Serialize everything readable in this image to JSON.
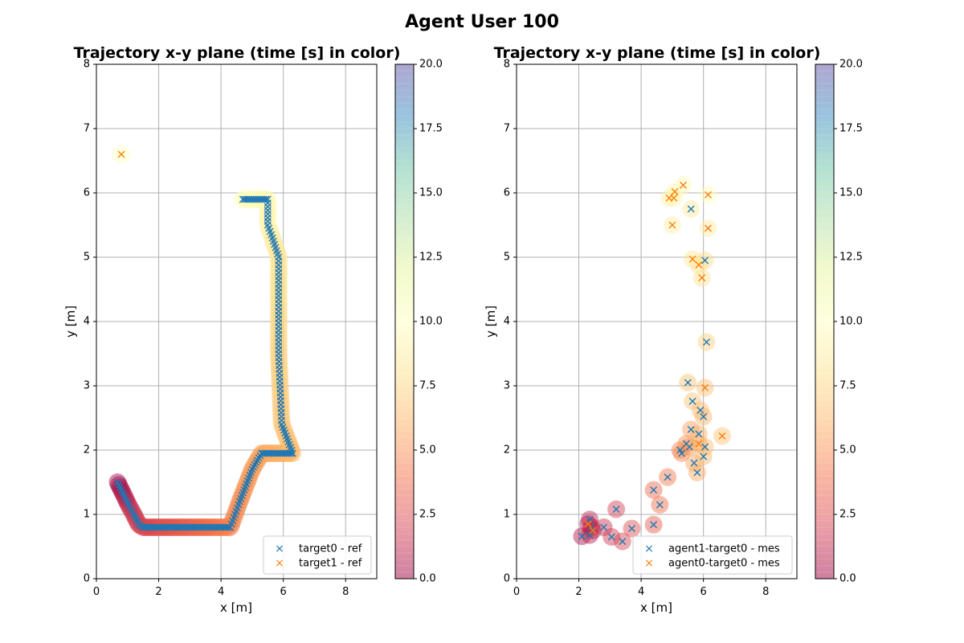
{
  "figure": {
    "suptitle": "Agent User 100"
  },
  "colorbar": {
    "ticks": [
      "0.0",
      "2.5",
      "5.0",
      "7.5",
      "10.0",
      "12.5",
      "15.0",
      "17.5",
      "20.0"
    ],
    "range": [
      0,
      20
    ],
    "colormap": "Spectral",
    "alpha": 0.5
  },
  "colors": {
    "blue": "#1f77b4",
    "orange": "#ff7f0e",
    "grid": "#b0b0b0"
  },
  "chart_data": [
    {
      "type": "scatter",
      "title": "Trajectory x-y plane  (time [s] in color)",
      "xlabel": "x [m]",
      "ylabel": "y [m]",
      "xlim": [
        0,
        9
      ],
      "ylim": [
        0,
        8
      ],
      "xticks": [
        "0",
        "2",
        "4",
        "6",
        "8"
      ],
      "yticks": [
        "0",
        "1",
        "2",
        "3",
        "4",
        "5",
        "6",
        "7",
        "8"
      ],
      "grid": true,
      "legend": {
        "placement": "bottom-right",
        "entries": [
          "target0 - ref",
          "target1 - ref"
        ]
      },
      "series": [
        {
          "name": "target0 - ref",
          "color": "#1f77b4",
          "path": [
            [
              0.68,
              1.5,
              0.0
            ],
            [
              1.05,
              1.13,
              1.2
            ],
            [
              1.2,
              1.0,
              1.6
            ],
            [
              1.35,
              0.85,
              2.0
            ],
            [
              1.5,
              0.8,
              2.2
            ],
            [
              2.5,
              0.8,
              3.0
            ],
            [
              3.5,
              0.8,
              3.8
            ],
            [
              4.3,
              0.8,
              4.6
            ],
            [
              4.6,
              1.2,
              5.0
            ],
            [
              5.0,
              1.7,
              5.4
            ],
            [
              5.3,
              1.95,
              5.7
            ],
            [
              6.3,
              1.95,
              6.4
            ],
            [
              5.95,
              2.4,
              6.9
            ],
            [
              5.85,
              3.5,
              7.4
            ],
            [
              5.85,
              5.0,
              8.3
            ],
            [
              5.65,
              5.3,
              8.8
            ],
            [
              5.5,
              5.5,
              9.2
            ],
            [
              5.5,
              5.9,
              9.5
            ],
            [
              4.7,
              5.9,
              10.0
            ]
          ],
          "step": 0.06
        },
        {
          "name": "target1 - ref",
          "color": "#ff7f0e",
          "points": [
            [
              0.8,
              6.6,
              10.0
            ]
          ]
        }
      ]
    },
    {
      "type": "scatter",
      "title": "Trajectory x-y plane  (time [s] in color)",
      "xlabel": "x [m]",
      "ylabel": "y [m]",
      "xlim": [
        0,
        9
      ],
      "ylim": [
        0,
        8
      ],
      "xticks": [
        "0",
        "2",
        "4",
        "6",
        "8"
      ],
      "yticks": [
        "0",
        "1",
        "2",
        "3",
        "4",
        "5",
        "6",
        "7",
        "8"
      ],
      "grid": true,
      "legend": {
        "placement": "bottom-right",
        "entries": [
          "agent1-target0 - mes",
          "agent0-target0 - mes"
        ]
      },
      "series": [
        {
          "name": "agent1-target0 - mes",
          "color": "#1f77b4",
          "points": [
            [
              2.1,
              0.66,
              0.5
            ],
            [
              2.35,
              0.68,
              0.8
            ],
            [
              2.35,
              0.92,
              1.0
            ],
            [
              2.4,
              0.8,
              1.2
            ],
            [
              2.8,
              0.8,
              1.5
            ],
            [
              3.05,
              0.65,
              1.7
            ],
            [
              3.2,
              1.08,
              1.9
            ],
            [
              3.4,
              0.58,
              2.1
            ],
            [
              3.7,
              0.78,
              2.5
            ],
            [
              4.4,
              0.84,
              3.0
            ],
            [
              4.4,
              1.38,
              3.6
            ],
            [
              4.6,
              1.15,
              3.9
            ],
            [
              4.85,
              1.58,
              4.2
            ],
            [
              5.25,
              2.0,
              4.6
            ],
            [
              5.3,
              1.95,
              4.8
            ],
            [
              5.45,
              2.1,
              5.0
            ],
            [
              5.55,
              2.05,
              5.2
            ],
            [
              5.6,
              2.32,
              5.4
            ],
            [
              5.7,
              1.8,
              5.6
            ],
            [
              5.8,
              1.65,
              5.8
            ],
            [
              5.85,
              2.25,
              6.0
            ],
            [
              5.9,
              2.62,
              6.2
            ],
            [
              6.0,
              2.52,
              6.3
            ],
            [
              6.0,
              1.9,
              6.4
            ],
            [
              6.05,
              2.05,
              6.5
            ],
            [
              5.5,
              3.05,
              6.7
            ],
            [
              5.65,
              2.76,
              6.8
            ],
            [
              6.1,
              3.68,
              7.3
            ],
            [
              6.05,
              4.95,
              7.8
            ],
            [
              5.6,
              5.75,
              8.5
            ]
          ]
        },
        {
          "name": "agent0-target0 - mes",
          "color": "#ff7f0e",
          "points": [
            [
              2.3,
              0.85,
              0.7
            ],
            [
              2.45,
              0.75,
              1.1
            ],
            [
              5.85,
              2.1,
              5.9
            ],
            [
              6.05,
              2.97,
              6.6
            ],
            [
              6.6,
              2.22,
              6.8
            ],
            [
              5.95,
              4.68,
              8.0
            ],
            [
              5.85,
              4.88,
              8.2
            ],
            [
              5.65,
              4.97,
              8.4
            ],
            [
              6.15,
              5.45,
              8.8
            ],
            [
              5.0,
              5.5,
              9.0
            ],
            [
              4.9,
              5.92,
              9.1
            ],
            [
              5.05,
              5.92,
              9.3
            ],
            [
              5.08,
              6.02,
              9.5
            ],
            [
              5.35,
              6.12,
              9.6
            ],
            [
              6.15,
              5.97,
              9.8
            ]
          ]
        }
      ]
    }
  ]
}
